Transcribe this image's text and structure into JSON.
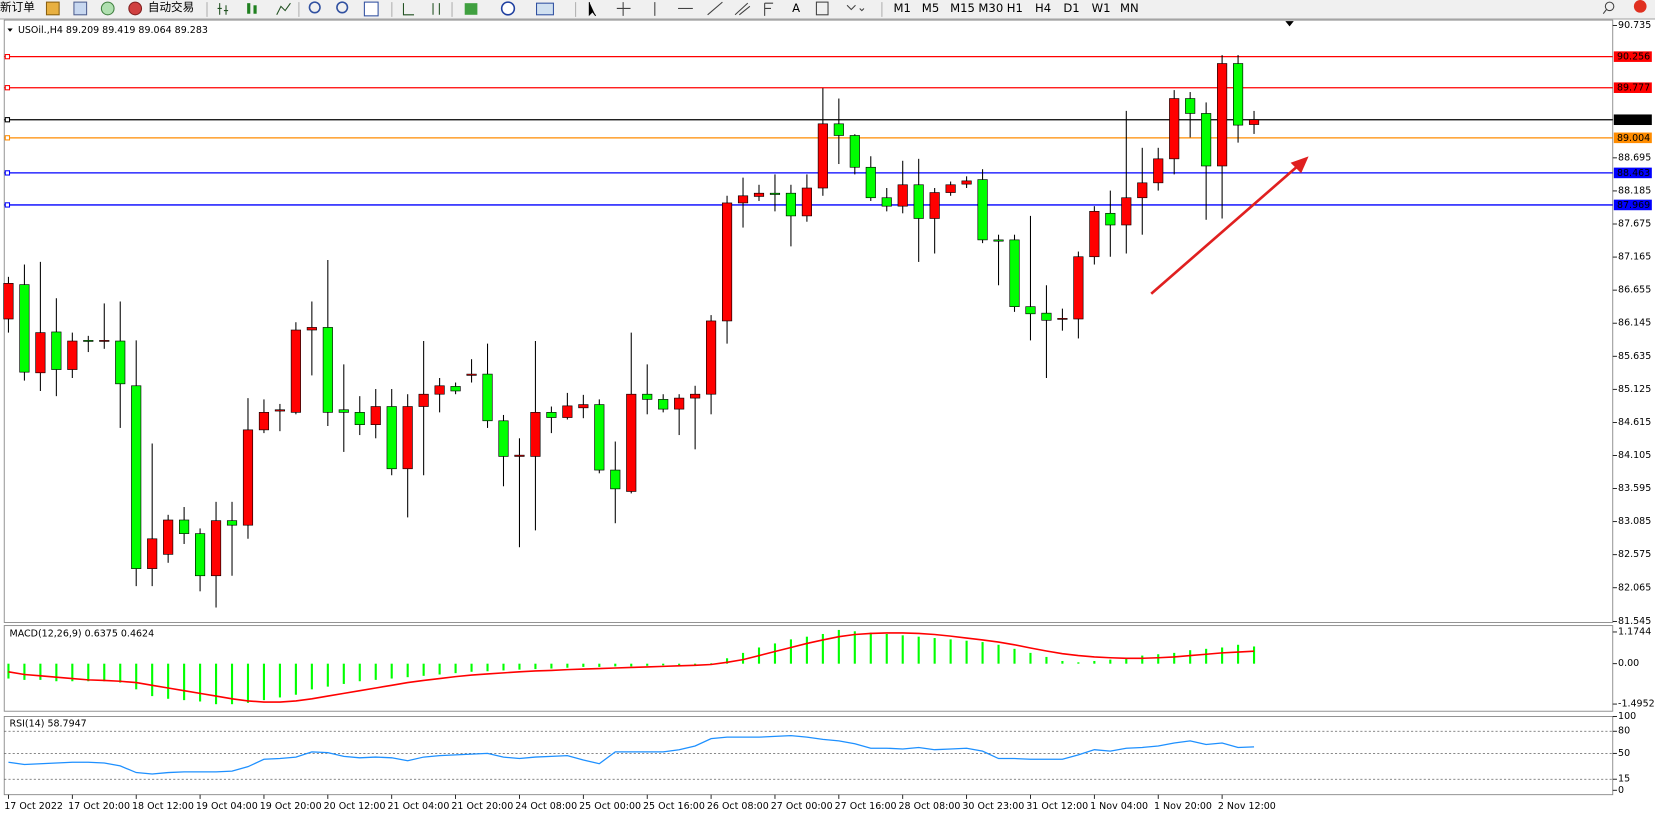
{
  "toolbar": {
    "new_order": "新订单",
    "auto_trading": "自动交易",
    "timeframes": [
      "M1",
      "M5",
      "M15",
      "M30",
      "H1",
      "H4",
      "D1",
      "W1",
      "MN"
    ]
  },
  "chart_data": [
    {
      "type": "candlestick",
      "title": "USOil.,H4 89.209 89.419 89.064 89.283",
      "categories": [
        "17 Oct 2022",
        null,
        null,
        null,
        "17 Oct 20:00",
        null,
        null,
        null,
        "18 Oct 12:00",
        null,
        null,
        null,
        "19 Oct 04:00",
        null,
        null,
        null,
        "19 Oct 20:00",
        null,
        null,
        null,
        "20 Oct 12:00",
        null,
        null,
        null,
        "21 Oct 04:00",
        null,
        null,
        null,
        "21 Oct 20:00",
        null,
        null,
        null,
        "24 Oct 08:00",
        null,
        null,
        null,
        "25 Oct 00:00",
        null,
        null,
        null,
        "25 Oct 16:00",
        null,
        null,
        null,
        "26 Oct 08:00",
        null,
        null,
        null,
        "27 Oct 00:00",
        null,
        null,
        null,
        "27 Oct 16:00",
        null,
        null,
        null,
        "28 Oct 08:00",
        null,
        null,
        null,
        "30 Oct 23:00",
        null,
        null,
        null,
        "31 Oct 12:00",
        null,
        null,
        null,
        "1 Nov 04:00",
        null,
        null,
        null,
        "1 Nov 20:00",
        null,
        null,
        null,
        "2 Nov 12:00",
        null,
        null
      ],
      "open": [
        86.21,
        86.74,
        85.38,
        86.01,
        85.43,
        85.88,
        85.87,
        85.87,
        85.18,
        82.36,
        82.58,
        83.11,
        82.9,
        82.25,
        83.1,
        83.03,
        84.5,
        84.79,
        84.77,
        86.04,
        86.08,
        84.81,
        84.77,
        84.58,
        84.86,
        83.9,
        84.86,
        85.05,
        85.17,
        85.34,
        85.36,
        84.64,
        84.09,
        84.09,
        84.77,
        84.69,
        84.84,
        84.89,
        83.88,
        83.55,
        85.05,
        84.97,
        84.82,
        84.99,
        85.05,
        86.18,
        88.0,
        88.1,
        88.15,
        88.15,
        87.8,
        88.23,
        89.22,
        89.04,
        88.55,
        88.08,
        87.95,
        88.28,
        87.76,
        88.16,
        88.29,
        88.36,
        87.43,
        87.43,
        86.4,
        86.3,
        86.21,
        86.21,
        87.17,
        87.84,
        87.66,
        88.08,
        88.31,
        88.68,
        89.61,
        89.38,
        88.57,
        90.15,
        89.209
      ],
      "high": [
        86.86,
        87.05,
        87.09,
        86.53,
        86.0,
        85.95,
        86.45,
        86.48,
        85.88,
        84.29,
        83.19,
        83.31,
        82.98,
        83.39,
        83.39,
        84.99,
        84.97,
        84.9,
        86.16,
        86.48,
        87.12,
        85.51,
        85.02,
        85.13,
        85.13,
        85.05,
        85.87,
        85.3,
        85.23,
        85.59,
        85.83,
        84.73,
        84.37,
        85.87,
        84.86,
        85.07,
        85.04,
        84.97,
        84.32,
        86.0,
        85.51,
        85.05,
        85.05,
        85.18,
        86.27,
        88.11,
        88.39,
        88.28,
        88.44,
        88.28,
        88.44,
        89.77,
        89.61,
        89.06,
        88.72,
        88.23,
        88.65,
        88.68,
        88.23,
        88.33,
        88.41,
        88.52,
        87.51,
        87.51,
        87.8,
        86.73,
        86.37,
        87.25,
        87.95,
        88.19,
        89.42,
        88.85,
        88.85,
        89.74,
        89.71,
        89.55,
        90.28,
        90.28,
        89.419
      ],
      "low": [
        86.0,
        85.26,
        85.1,
        85.02,
        85.3,
        85.7,
        85.75,
        84.53,
        82.09,
        82.09,
        82.45,
        82.74,
        82.01,
        81.76,
        82.25,
        82.82,
        84.45,
        84.48,
        84.74,
        85.34,
        84.56,
        84.16,
        84.42,
        84.37,
        83.8,
        83.15,
        83.8,
        84.77,
        85.05,
        85.23,
        84.53,
        83.63,
        82.69,
        82.95,
        84.45,
        84.66,
        84.68,
        83.83,
        83.06,
        83.52,
        84.74,
        84.77,
        84.42,
        84.2,
        84.74,
        85.83,
        87.62,
        88.03,
        87.87,
        87.33,
        87.71,
        88.11,
        88.6,
        88.44,
        88.03,
        87.87,
        87.84,
        87.09,
        87.22,
        88.11,
        88.23,
        87.38,
        86.73,
        86.32,
        85.88,
        85.3,
        86.03,
        85.91,
        87.05,
        87.17,
        87.22,
        87.51,
        88.19,
        88.44,
        89.01,
        87.74,
        87.76,
        88.93,
        89.064
      ],
      "close": [
        86.76,
        85.39,
        86.0,
        85.43,
        85.87,
        85.87,
        85.88,
        85.21,
        82.36,
        82.82,
        83.11,
        82.9,
        82.25,
        83.1,
        83.03,
        84.5,
        84.77,
        84.81,
        86.04,
        86.08,
        84.77,
        84.77,
        84.58,
        84.86,
        83.9,
        84.86,
        85.05,
        85.18,
        85.1,
        85.36,
        84.64,
        84.09,
        84.11,
        84.77,
        84.69,
        84.87,
        84.89,
        83.88,
        83.59,
        85.05,
        84.97,
        84.82,
        84.99,
        85.05,
        86.18,
        88.0,
        88.11,
        88.15,
        88.13,
        87.8,
        88.23,
        89.22,
        89.04,
        88.55,
        88.08,
        87.95,
        88.28,
        87.76,
        88.16,
        88.28,
        88.34,
        87.43,
        87.41,
        86.4,
        86.29,
        86.19,
        86.22,
        87.17,
        87.87,
        87.66,
        88.08,
        88.31,
        88.68,
        89.61,
        89.38,
        88.57,
        90.15,
        89.2,
        89.283
      ],
      "up_color": "#ff0000",
      "down_color": "#00ff00",
      "ylim": [
        81.53,
        90.82
      ],
      "yticks": [
        90.735,
        88.695,
        88.185,
        87.675,
        87.165,
        86.655,
        86.145,
        85.635,
        85.125,
        84.615,
        84.105,
        83.595,
        83.085,
        82.575,
        82.065,
        81.545
      ],
      "hlines": [
        {
          "value": 90.256,
          "color": "#ff0000"
        },
        {
          "value": 89.777,
          "color": "#ff0000"
        },
        {
          "value": 89.283,
          "color": "#000000"
        },
        {
          "value": 89.004,
          "color": "#ff8c00"
        },
        {
          "value": 88.463,
          "color": "#0000ff"
        },
        {
          "value": 87.969,
          "color": "#0000ff"
        }
      ]
    },
    {
      "type": "macd",
      "title": "MACD(12,26,9) 0.6375 0.4624",
      "histogram": {
        "color": "#00ff00",
        "values": [
          -0.55,
          -0.6,
          -0.6,
          -0.65,
          -0.65,
          -0.65,
          -0.65,
          -0.7,
          -0.95,
          -1.2,
          -1.3,
          -1.35,
          -1.4,
          -1.5,
          -1.5,
          -1.45,
          -1.35,
          -1.25,
          -1.15,
          -0.95,
          -0.85,
          -0.75,
          -0.65,
          -0.6,
          -0.55,
          -0.5,
          -0.45,
          -0.4,
          -0.35,
          -0.3,
          -0.28,
          -0.25,
          -0.22,
          -0.2,
          -0.18,
          -0.15,
          -0.12,
          -0.12,
          -0.1,
          -0.1,
          -0.08,
          -0.06,
          -0.05,
          -0.04,
          0.02,
          0.2,
          0.4,
          0.6,
          0.75,
          0.9,
          1.0,
          1.1,
          1.25,
          1.2,
          1.15,
          1.1,
          1.05,
          1.0,
          0.95,
          0.9,
          0.85,
          0.8,
          0.7,
          0.55,
          0.4,
          0.25,
          0.1,
          0.05,
          0.1,
          0.15,
          0.2,
          0.3,
          0.35,
          0.4,
          0.5,
          0.55,
          0.6,
          0.7,
          0.6375
        ]
      },
      "signal": {
        "color": "#ff0000",
        "values": [
          -0.3,
          -0.4,
          -0.45,
          -0.5,
          -0.55,
          -0.6,
          -0.62,
          -0.65,
          -0.7,
          -0.8,
          -0.9,
          -1.0,
          -1.1,
          -1.2,
          -1.3,
          -1.38,
          -1.42,
          -1.42,
          -1.38,
          -1.3,
          -1.2,
          -1.1,
          -1.0,
          -0.9,
          -0.8,
          -0.7,
          -0.62,
          -0.55,
          -0.48,
          -0.42,
          -0.38,
          -0.34,
          -0.3,
          -0.27,
          -0.25,
          -0.22,
          -0.2,
          -0.18,
          -0.16,
          -0.14,
          -0.12,
          -0.1,
          -0.08,
          -0.06,
          -0.03,
          0.05,
          0.15,
          0.3,
          0.45,
          0.6,
          0.75,
          0.88,
          1.0,
          1.08,
          1.12,
          1.14,
          1.14,
          1.12,
          1.08,
          1.02,
          0.95,
          0.88,
          0.8,
          0.7,
          0.58,
          0.47,
          0.37,
          0.3,
          0.25,
          0.22,
          0.2,
          0.2,
          0.22,
          0.25,
          0.3,
          0.35,
          0.4,
          0.43,
          0.4624
        ]
      },
      "ylim": [
        -1.76,
        1.41
      ],
      "yticks": [
        1.1744,
        {
          "value": 0,
          "label": "0.00"
        },
        -1.4952
      ]
    },
    {
      "type": "rsi",
      "title": "RSI(14) 58.7947",
      "line": {
        "color": "#1e90ff",
        "values": [
          38,
          35,
          36,
          37,
          38,
          38,
          37,
          33,
          24,
          22,
          24,
          25,
          25,
          25,
          26,
          32,
          42,
          43,
          45,
          52,
          51,
          46,
          44,
          45,
          44,
          40,
          45,
          47,
          48,
          49,
          50,
          45,
          43,
          45,
          46,
          47,
          41,
          36,
          52,
          52,
          52,
          52,
          55,
          60,
          70,
          72,
          72,
          72,
          73,
          74,
          72,
          69,
          67,
          63,
          57,
          57,
          56,
          58,
          55,
          56,
          57,
          53,
          43,
          43,
          42,
          42,
          42,
          48,
          55,
          53,
          57,
          58,
          60,
          64,
          67,
          62,
          64,
          58,
          58.7947
        ]
      },
      "ylim": [
        -6,
        100
      ],
      "yticks": [
        100,
        80,
        50,
        15,
        0
      ],
      "levels": [
        80,
        50,
        15
      ]
    }
  ]
}
